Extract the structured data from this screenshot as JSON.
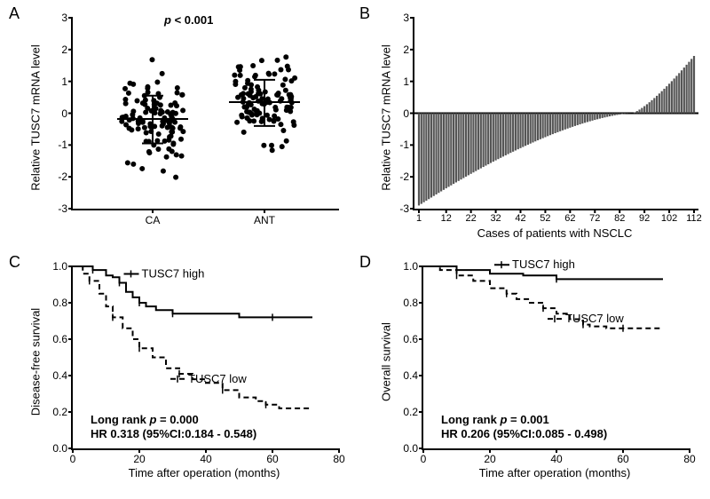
{
  "panelA": {
    "label": "A",
    "ylabel": "Relative TUSC7 mRNA level",
    "ylim": [
      -3,
      3
    ],
    "yticks": [
      -3,
      -2,
      -1,
      0,
      1,
      2,
      3
    ],
    "xcats": [
      "CA",
      "ANT"
    ],
    "pvalue": "p < 0.001",
    "pvalue_style": "italic-p",
    "marker_color": "#000000",
    "marker_size": 3,
    "ca_mean": -0.18,
    "ca_sd_low": -0.95,
    "ca_sd_high": 0.55,
    "ant_mean": 0.35,
    "ant_sd_low": -0.4,
    "ant_sd_high": 1.05,
    "n_points": 112
  },
  "panelB": {
    "label": "B",
    "ylabel": "Relative TUSC7 mRNA level",
    "xlabel": "Cases of patients with NSCLC",
    "ylim": [
      -3,
      3
    ],
    "yticks": [
      -3,
      -2,
      -1,
      0,
      1,
      2,
      3
    ],
    "xticks": [
      1,
      12,
      22,
      32,
      42,
      52,
      62,
      72,
      82,
      92,
      102,
      112
    ],
    "bar_color": "#555555",
    "n_bars": 112,
    "min_value": -2.9,
    "max_value": 1.8,
    "zero_cross_index": 87
  },
  "panelC": {
    "label": "C",
    "ylabel": "Disease-free survival",
    "xlabel": "Time after operation (months)",
    "ylim": [
      0.0,
      1.0
    ],
    "yticks": [
      0.0,
      0.2,
      0.4,
      0.6,
      0.8,
      1.0
    ],
    "xlim": [
      0,
      80
    ],
    "xticks": [
      0,
      20,
      40,
      60,
      80
    ],
    "high_label": "TUSC7 high",
    "low_label": "TUSC7 low",
    "high_line_style": "solid",
    "low_line_style": "dashed",
    "line_color": "#000000",
    "stat_line1": "Long rank p = 0.000",
    "stat_line2": "HR 0.318 (95%CI:0.184 - 0.548)",
    "high_curve": [
      [
        0,
        1.0
      ],
      [
        5,
        1.0
      ],
      [
        6,
        0.98
      ],
      [
        10,
        0.95
      ],
      [
        12,
        0.94
      ],
      [
        14,
        0.91
      ],
      [
        16,
        0.86
      ],
      [
        18,
        0.83
      ],
      [
        20,
        0.8
      ],
      [
        22,
        0.78
      ],
      [
        25,
        0.76
      ],
      [
        30,
        0.74
      ],
      [
        40,
        0.74
      ],
      [
        50,
        0.72
      ],
      [
        60,
        0.72
      ],
      [
        72,
        0.72
      ]
    ],
    "low_curve": [
      [
        0,
        1.0
      ],
      [
        3,
        0.96
      ],
      [
        5,
        0.92
      ],
      [
        8,
        0.85
      ],
      [
        10,
        0.78
      ],
      [
        12,
        0.72
      ],
      [
        15,
        0.66
      ],
      [
        18,
        0.6
      ],
      [
        20,
        0.55
      ],
      [
        24,
        0.5
      ],
      [
        28,
        0.44
      ],
      [
        32,
        0.41
      ],
      [
        36,
        0.38
      ],
      [
        40,
        0.36
      ],
      [
        45,
        0.32
      ],
      [
        50,
        0.28
      ],
      [
        55,
        0.26
      ],
      [
        58,
        0.24
      ],
      [
        62,
        0.22
      ],
      [
        72,
        0.22
      ]
    ]
  },
  "panelD": {
    "label": "D",
    "ylabel": "Overall survival",
    "xlabel": "Time after operation (months)",
    "ylim": [
      0.0,
      1.0
    ],
    "yticks": [
      0.0,
      0.2,
      0.4,
      0.6,
      0.8,
      1.0
    ],
    "xlim": [
      0,
      80
    ],
    "xticks": [
      0,
      20,
      40,
      60,
      80
    ],
    "high_label": "TUSC7 high",
    "low_label": "TUSC7 low",
    "high_line_style": "solid",
    "low_line_style": "dashed",
    "line_color": "#000000",
    "stat_line1": "Long rank p = 0.001",
    "stat_line2": "HR 0.206 (95%CI:0.085 - 0.498)",
    "high_curve": [
      [
        0,
        1.0
      ],
      [
        8,
        1.0
      ],
      [
        10,
        0.98
      ],
      [
        20,
        0.96
      ],
      [
        30,
        0.95
      ],
      [
        40,
        0.93
      ],
      [
        50,
        0.93
      ],
      [
        60,
        0.93
      ],
      [
        72,
        0.93
      ]
    ],
    "low_curve": [
      [
        0,
        1.0
      ],
      [
        5,
        0.98
      ],
      [
        10,
        0.95
      ],
      [
        15,
        0.92
      ],
      [
        20,
        0.88
      ],
      [
        25,
        0.85
      ],
      [
        28,
        0.82
      ],
      [
        32,
        0.8
      ],
      [
        36,
        0.77
      ],
      [
        40,
        0.74
      ],
      [
        44,
        0.71
      ],
      [
        48,
        0.68
      ],
      [
        50,
        0.67
      ],
      [
        55,
        0.66
      ],
      [
        60,
        0.66
      ],
      [
        72,
        0.66
      ]
    ]
  }
}
